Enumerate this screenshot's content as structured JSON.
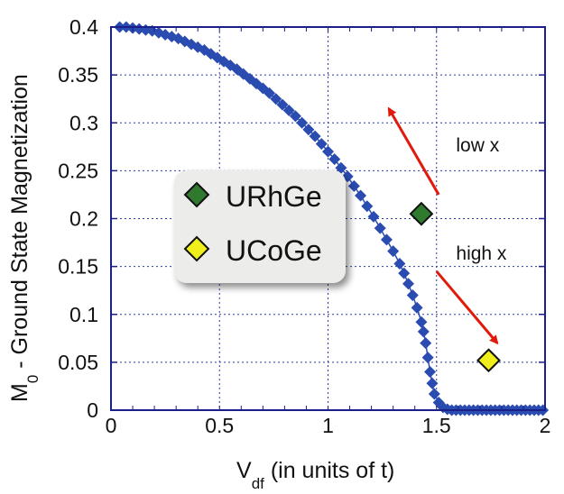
{
  "chart_data": {
    "type": "scatter",
    "xlabel_main": "V",
    "xlabel_sub": "df",
    "xlabel_rest": " (in units of t)",
    "ylabel_main": "M",
    "ylabel_sub": "0",
    "ylabel_rest": " - Ground State Magnetization",
    "xlim": [
      0,
      2
    ],
    "ylim": [
      0,
      0.4
    ],
    "grid": true,
    "xticks": [
      0,
      0.5,
      1,
      1.5,
      2
    ],
    "xtick_labels": [
      "0",
      "0.5",
      "1",
      "1.5",
      "2"
    ],
    "yticks": [
      0,
      0.05,
      0.1,
      0.15,
      0.2,
      0.25,
      0.3,
      0.35,
      0.4
    ],
    "ytick_labels": [
      "0",
      "0.05",
      "0.1",
      "0.15",
      "0.2",
      "0.25",
      "0.3",
      "0.35",
      "0.4"
    ],
    "series": [
      {
        "color": "#2a4bb0",
        "marker": "diamond",
        "x": [
          0.04,
          0.07,
          0.1,
          0.13,
          0.16,
          0.19,
          0.22,
          0.25,
          0.28,
          0.31,
          0.34,
          0.37,
          0.4,
          0.43,
          0.46,
          0.49,
          0.52,
          0.55,
          0.58,
          0.61,
          0.64,
          0.67,
          0.7,
          0.73,
          0.76,
          0.79,
          0.82,
          0.85,
          0.88,
          0.91,
          0.94,
          0.97,
          1.0,
          1.03,
          1.06,
          1.09,
          1.12,
          1.15,
          1.18,
          1.21,
          1.24,
          1.27,
          1.3,
          1.33,
          1.35,
          1.37,
          1.39,
          1.41,
          1.43,
          1.44,
          1.45,
          1.46,
          1.47,
          1.48,
          1.49,
          1.51,
          1.53,
          1.55,
          1.57,
          1.59,
          1.61,
          1.63,
          1.65,
          1.67,
          1.69,
          1.71,
          1.73,
          1.75,
          1.77,
          1.79,
          1.81,
          1.83,
          1.85,
          1.87,
          1.89,
          1.91,
          1.93,
          1.95,
          1.97,
          1.99
        ],
        "y": [
          0.4,
          0.4,
          0.399,
          0.398,
          0.397,
          0.396,
          0.394,
          0.392,
          0.39,
          0.388,
          0.385,
          0.382,
          0.379,
          0.376,
          0.372,
          0.368,
          0.364,
          0.36,
          0.356,
          0.351,
          0.346,
          0.341,
          0.336,
          0.331,
          0.325,
          0.319,
          0.313,
          0.307,
          0.3,
          0.293,
          0.286,
          0.278,
          0.27,
          0.262,
          0.253,
          0.244,
          0.234,
          0.224,
          0.213,
          0.202,
          0.19,
          0.178,
          0.166,
          0.153,
          0.143,
          0.132,
          0.12,
          0.107,
          0.092,
          0.082,
          0.07,
          0.055,
          0.04,
          0.028,
          0.017,
          0.008,
          0.003,
          0.001,
          0.0,
          0.0,
          0.0,
          0.0,
          0.0,
          0.0,
          0.0,
          0.0,
          0.0,
          0.0,
          0.0,
          0.0,
          0.0,
          0.0,
          0.0,
          0.0,
          0.0,
          0.0,
          0.0,
          0.0,
          0.0,
          0.0
        ]
      }
    ],
    "highlights": [
      {
        "name": "URhGe",
        "x": 1.43,
        "y": 0.205,
        "color": "#2f7a2f"
      },
      {
        "name": "UCoGe",
        "x": 1.74,
        "y": 0.052,
        "color": "#f0ef1c"
      }
    ],
    "annotations": [
      {
        "text": "low x"
      },
      {
        "text": "high x"
      }
    ],
    "arrow_color": "#e01b0e",
    "legend_placement": "center-left"
  }
}
